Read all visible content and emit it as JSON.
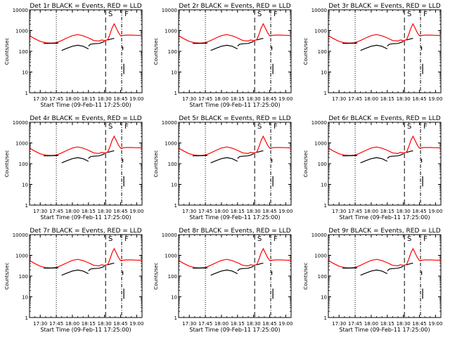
{
  "chart_data": {
    "type": "line",
    "panels": [
      {
        "title": "Det 1r BLACK = Events, RED = LLD",
        "xlabel": "Start Time (09-Feb-11 17:25:00)",
        "show_xlabel": true
      },
      {
        "title": "Det 2r BLACK = Events, RED = LLD",
        "xlabel": "Start Time (09-Feb-11 17:25:00)",
        "show_xlabel": true
      },
      {
        "title": "Det 3r BLACK = Events, RED = LLD",
        "xlabel": "",
        "show_xlabel": false
      },
      {
        "title": "Det 4r BLACK = Events, RED = LLD",
        "xlabel": "Start Time (09-Feb-11 17:25:00)",
        "show_xlabel": true
      },
      {
        "title": "Det 5r BLACK = Events, RED = LLD",
        "xlabel": "Start Time (09-Feb-11 17:25:00)",
        "show_xlabel": true
      },
      {
        "title": "Det 6r BLACK = Events, RED = LLD",
        "xlabel": "Start Time (09-Feb-11 17:25:00)",
        "show_xlabel": true
      },
      {
        "title": "Det 7r BLACK = Events, RED = LLD",
        "xlabel": "Start Time (09-Feb-11 17:25:00)",
        "show_xlabel": true
      },
      {
        "title": "Det 8r BLACK = Events, RED = LLD",
        "xlabel": "Start Time (09-Feb-11 17:25:00)",
        "show_xlabel": true
      },
      {
        "title": "Det 9r BLACK = Events, RED = LLD",
        "xlabel": "Start Time (09-Feb-11 17:25:00)",
        "show_xlabel": true
      }
    ],
    "ylabel": "Counts/sec",
    "y_scale": "log",
    "ylim": [
      1,
      10000
    ],
    "y_ticks": [
      1,
      10,
      100,
      1000,
      10000
    ],
    "y_tick_labels": [
      "1",
      "10",
      "100",
      "1000",
      "10000"
    ],
    "x_range_minutes": [
      -5,
      100
    ],
    "x_ticks": [
      5,
      20,
      35,
      50,
      65,
      80,
      95
    ],
    "x_tick_labels": [
      "17:30",
      "17:45",
      "18:00",
      "18:15",
      "18:30",
      "18:45",
      "19:00"
    ],
    "dotted_line_x": 20,
    "dashed_line_x": 66,
    "dashdot_line_x": 81,
    "region_labels": [
      "S",
      "F"
    ],
    "series": [
      {
        "name": "LLD",
        "color": "#ff0000",
        "x": [
          -5,
          0,
          5,
          10,
          15,
          20,
          25,
          30,
          35,
          40,
          45,
          50,
          55,
          60,
          62,
          65,
          68,
          70,
          72,
          74,
          76,
          78,
          80,
          85,
          90,
          95,
          100
        ],
        "y": [
          560,
          400,
          300,
          260,
          250,
          260,
          330,
          440,
          570,
          640,
          560,
          440,
          330,
          310,
          350,
          330,
          360,
          650,
          1300,
          2100,
          1300,
          800,
          560,
          600,
          600,
          590,
          580
        ]
      },
      {
        "name": "Events",
        "color": "#000000",
        "segments": [
          {
            "x": [
              8,
              12,
              18,
              22
            ],
            "y": [
              240,
              240,
              245,
              250
            ]
          },
          {
            "x": [
              25,
              30,
              35,
              40,
              45,
              50
            ],
            "y": [
              110,
              140,
              175,
              195,
              175,
              130
            ]
          },
          {
            "x": [
              50,
              52,
              55,
              60,
              63,
              65
            ],
            "y": [
              180,
              220,
              230,
              240,
              270,
              300
            ]
          },
          {
            "x": [
              68,
              72,
              74
            ],
            "y": [
              350,
              400,
              420
            ]
          },
          {
            "x": [
              82,
              82
            ],
            "y": [
              170,
              115
            ]
          },
          {
            "x": [
              83,
              83
            ],
            "y": [
              25,
              8
            ]
          }
        ]
      }
    ]
  }
}
